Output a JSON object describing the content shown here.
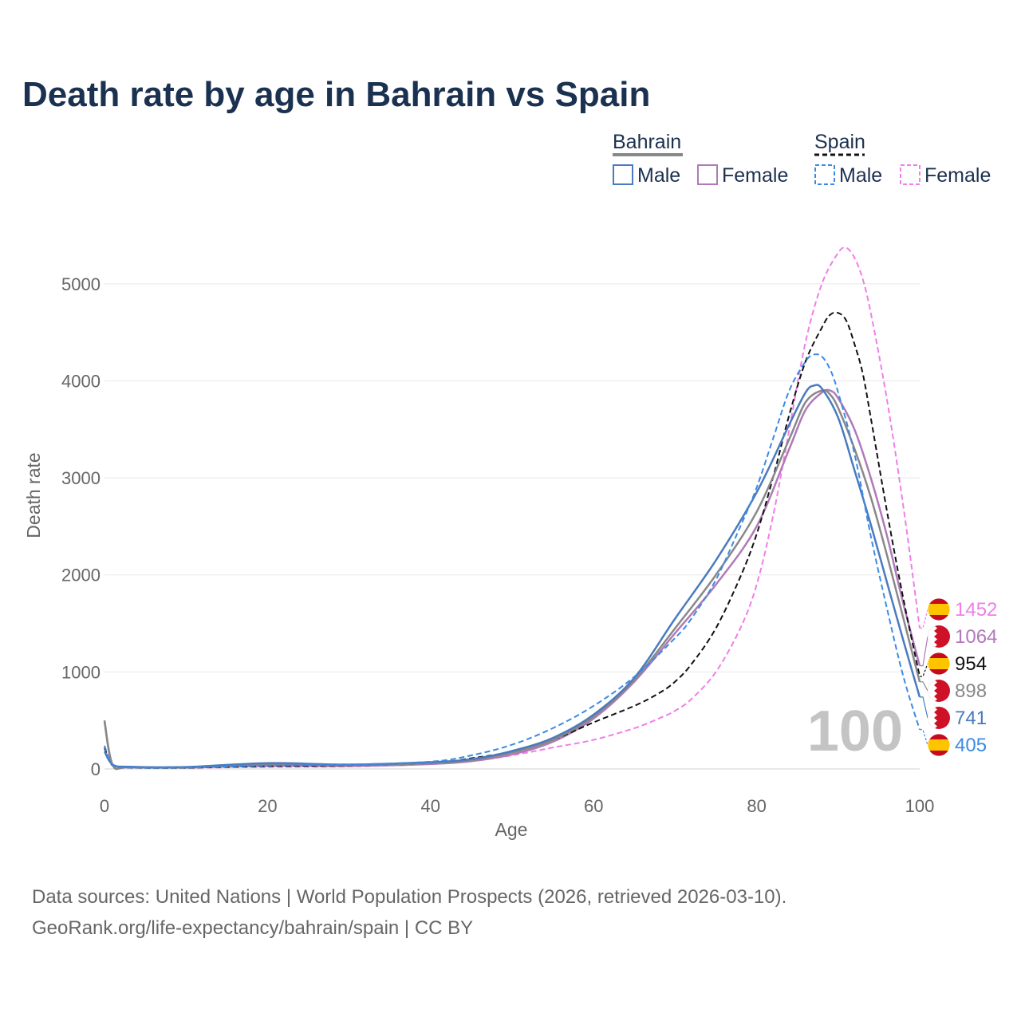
{
  "title": "Death rate by age in Bahrain vs Spain",
  "legend": {
    "groups": [
      {
        "name": "Bahrain",
        "line_color": "#888888",
        "dashed": false,
        "items": [
          {
            "label": "Male",
            "color": "#4a7bbf"
          },
          {
            "label": "Female",
            "color": "#b07ab8"
          }
        ]
      },
      {
        "name": "Spain",
        "line_color": "#111111",
        "dashed": true,
        "items": [
          {
            "label": "Male",
            "color": "#3b8ae6"
          },
          {
            "label": "Female",
            "color": "#f07ee8"
          }
        ]
      }
    ]
  },
  "watermark": "100",
  "sources": [
    "Data sources: United Nations | World Population Prospects (2026, retrieved 2026-03-10).",
    "GeoRank.org/life-expectancy/bahrain/spain | CC BY"
  ],
  "chart_data": {
    "type": "line",
    "xlabel": "Age",
    "ylabel": "Death rate",
    "xlim": [
      0,
      100
    ],
    "ylim": [
      0,
      5500
    ],
    "xticks": [
      0,
      20,
      40,
      60,
      80,
      100
    ],
    "yticks": [
      0,
      1000,
      2000,
      3000,
      4000,
      5000
    ],
    "grid": true,
    "series": [
      {
        "name": "Spain Female",
        "color": "#f07ee8",
        "dashed": true,
        "flag": "spain",
        "end_value": 1452,
        "points": [
          [
            0,
            210
          ],
          [
            1,
            35
          ],
          [
            3,
            15
          ],
          [
            10,
            12
          ],
          [
            20,
            20
          ],
          [
            30,
            25
          ],
          [
            40,
            50
          ],
          [
            45,
            80
          ],
          [
            50,
            140
          ],
          [
            55,
            220
          ],
          [
            60,
            300
          ],
          [
            65,
            420
          ],
          [
            68,
            520
          ],
          [
            70,
            600
          ],
          [
            72,
            720
          ],
          [
            75,
            1000
          ],
          [
            78,
            1450
          ],
          [
            80,
            1900
          ],
          [
            82,
            2600
          ],
          [
            84,
            3500
          ],
          [
            86,
            4400
          ],
          [
            88,
            5000
          ],
          [
            90,
            5320
          ],
          [
            91,
            5370
          ],
          [
            92,
            5270
          ],
          [
            93,
            5050
          ],
          [
            94,
            4700
          ],
          [
            96,
            3800
          ],
          [
            98,
            2700
          ],
          [
            100,
            1452
          ]
        ]
      },
      {
        "name": "Bahrain Female",
        "color": "#b07ab8",
        "dashed": false,
        "flag": "bahrain",
        "end_value": 1064,
        "points": [
          [
            0,
            490
          ],
          [
            1,
            40
          ],
          [
            3,
            18
          ],
          [
            10,
            15
          ],
          [
            20,
            30
          ],
          [
            30,
            30
          ],
          [
            40,
            50
          ],
          [
            45,
            80
          ],
          [
            50,
            150
          ],
          [
            55,
            280
          ],
          [
            60,
            520
          ],
          [
            65,
            900
          ],
          [
            70,
            1400
          ],
          [
            75,
            1900
          ],
          [
            80,
            2500
          ],
          [
            84,
            3300
          ],
          [
            86,
            3700
          ],
          [
            88,
            3880
          ],
          [
            89,
            3900
          ],
          [
            90,
            3820
          ],
          [
            92,
            3500
          ],
          [
            94,
            3000
          ],
          [
            96,
            2400
          ],
          [
            98,
            1700
          ],
          [
            100,
            1064
          ]
        ]
      },
      {
        "name": "Spain Both",
        "color": "#111111",
        "dashed": true,
        "flag": "spain",
        "end_value": 954,
        "points": [
          [
            0,
            220
          ],
          [
            1,
            35
          ],
          [
            3,
            14
          ],
          [
            10,
            12
          ],
          [
            20,
            30
          ],
          [
            30,
            35
          ],
          [
            40,
            60
          ],
          [
            45,
            110
          ],
          [
            50,
            180
          ],
          [
            55,
            300
          ],
          [
            60,
            480
          ],
          [
            65,
            650
          ],
          [
            68,
            780
          ],
          [
            70,
            900
          ],
          [
            72,
            1080
          ],
          [
            75,
            1450
          ],
          [
            78,
            1980
          ],
          [
            80,
            2420
          ],
          [
            82,
            3000
          ],
          [
            84,
            3650
          ],
          [
            86,
            4200
          ],
          [
            88,
            4550
          ],
          [
            89,
            4680
          ],
          [
            90,
            4700
          ],
          [
            91,
            4620
          ],
          [
            92,
            4380
          ],
          [
            93,
            4080
          ],
          [
            94,
            3620
          ],
          [
            96,
            2650
          ],
          [
            98,
            1750
          ],
          [
            100,
            954
          ]
        ]
      },
      {
        "name": "Bahrain Both",
        "color": "#888888",
        "dashed": false,
        "flag": "bahrain",
        "end_value": 898,
        "points": [
          [
            0,
            500
          ],
          [
            1,
            42
          ],
          [
            3,
            20
          ],
          [
            10,
            18
          ],
          [
            20,
            45
          ],
          [
            30,
            38
          ],
          [
            40,
            60
          ],
          [
            45,
            90
          ],
          [
            50,
            170
          ],
          [
            55,
            300
          ],
          [
            60,
            540
          ],
          [
            65,
            920
          ],
          [
            70,
            1450
          ],
          [
            75,
            2000
          ],
          [
            80,
            2650
          ],
          [
            84,
            3400
          ],
          [
            86,
            3780
          ],
          [
            88,
            3900
          ],
          [
            89,
            3860
          ],
          [
            90,
            3720
          ],
          [
            92,
            3300
          ],
          [
            94,
            2800
          ],
          [
            96,
            2200
          ],
          [
            98,
            1550
          ],
          [
            100,
            898
          ]
        ]
      },
      {
        "name": "Bahrain Male",
        "color": "#4a7bbf",
        "dashed": false,
        "flag": "bahrain",
        "end_value": 741,
        "points": [
          [
            0,
            180
          ],
          [
            1,
            45
          ],
          [
            3,
            22
          ],
          [
            10,
            20
          ],
          [
            20,
            60
          ],
          [
            30,
            45
          ],
          [
            40,
            70
          ],
          [
            45,
            100
          ],
          [
            50,
            185
          ],
          [
            55,
            320
          ],
          [
            60,
            560
          ],
          [
            65,
            940
          ],
          [
            70,
            1550
          ],
          [
            75,
            2150
          ],
          [
            80,
            2850
          ],
          [
            84,
            3550
          ],
          [
            86,
            3880
          ],
          [
            87,
            3950
          ],
          [
            88,
            3920
          ],
          [
            90,
            3620
          ],
          [
            92,
            3080
          ],
          [
            94,
            2520
          ],
          [
            96,
            1920
          ],
          [
            98,
            1320
          ],
          [
            100,
            741
          ]
        ]
      },
      {
        "name": "Spain Male",
        "color": "#3b8ae6",
        "dashed": true,
        "flag": "spain",
        "end_value": 405,
        "points": [
          [
            0,
            240
          ],
          [
            1,
            40
          ],
          [
            3,
            15
          ],
          [
            10,
            14
          ],
          [
            20,
            35
          ],
          [
            30,
            45
          ],
          [
            40,
            75
          ],
          [
            45,
            140
          ],
          [
            50,
            250
          ],
          [
            55,
            420
          ],
          [
            60,
            650
          ],
          [
            65,
            950
          ],
          [
            70,
            1350
          ],
          [
            72,
            1550
          ],
          [
            75,
            1950
          ],
          [
            78,
            2500
          ],
          [
            80,
            2900
          ],
          [
            82,
            3400
          ],
          [
            84,
            3900
          ],
          [
            86,
            4200
          ],
          [
            87,
            4270
          ],
          [
            88,
            4250
          ],
          [
            89,
            4120
          ],
          [
            90,
            3880
          ],
          [
            92,
            3250
          ],
          [
            94,
            2400
          ],
          [
            96,
            1650
          ],
          [
            98,
            950
          ],
          [
            100,
            405
          ]
        ]
      }
    ]
  }
}
